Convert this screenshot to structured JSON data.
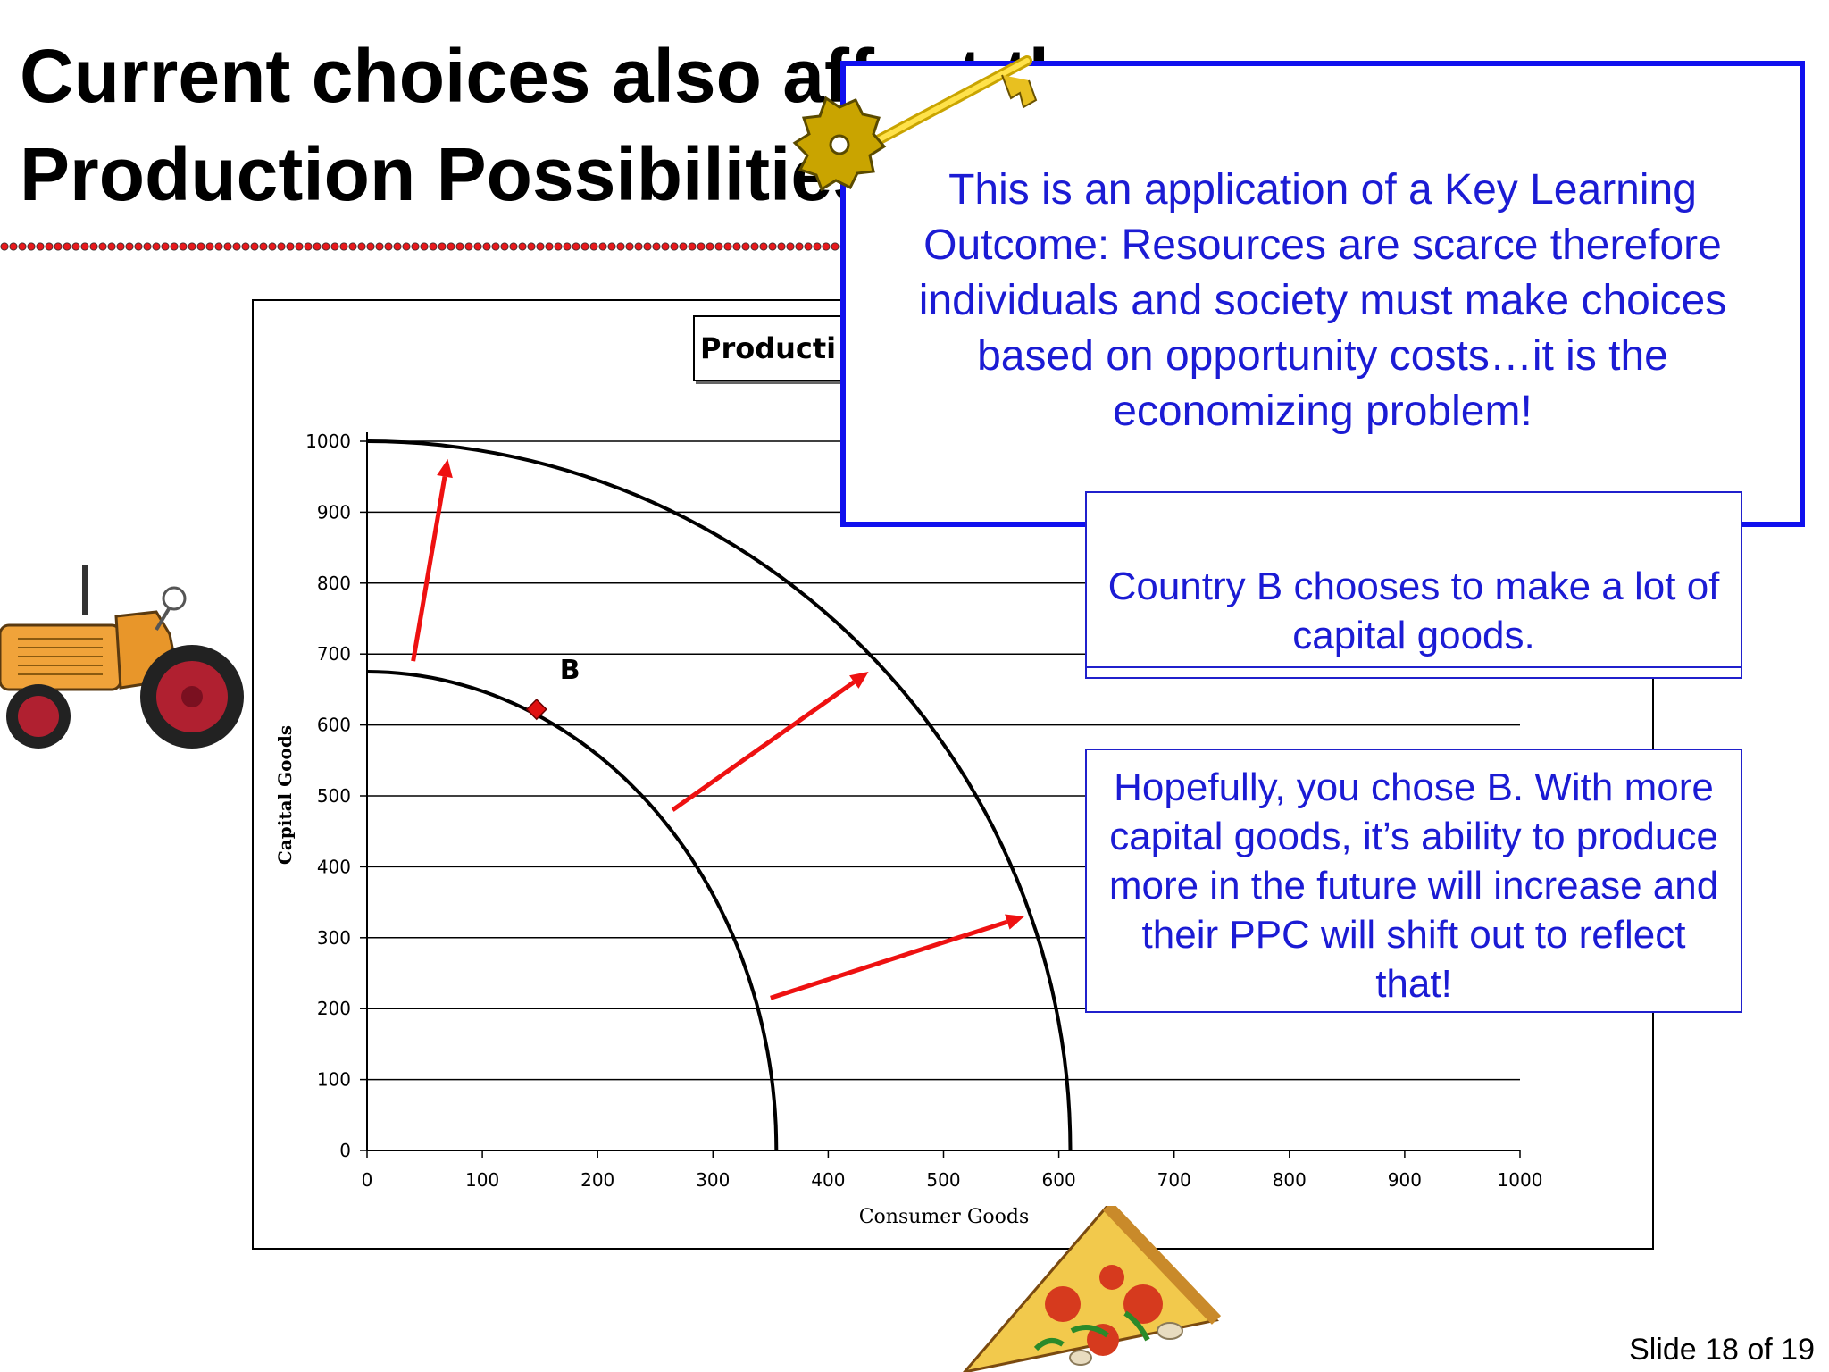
{
  "slide": {
    "title_line1": "Current choices also affect the",
    "title_line2": "Production Possibilities",
    "slide_number": "Slide 18 of 19",
    "accent_color": "#1b1bd4"
  },
  "callouts": {
    "key_learning": "This is an application of a Key Learning Outcome:  Resources are scarce therefore individuals and society must make choices based on opportunity costs…it is the economizing problem!",
    "country_b": "Country B chooses to make a lot of capital goods.",
    "hopefully": "Hopefully, you chose B.  With more capital goods, it’s ability to produce more in the future will increase and their PPC will shift out to reflect that!"
  },
  "icons": {
    "key": "golden-key-icon",
    "tractor": "tractor-icon",
    "pizza": "pizza-slice-icon"
  },
  "chart_data": {
    "type": "line",
    "title": "Producti",
    "xlabel": "Consumer Goods",
    "ylabel": "Capital Goods",
    "xlim": [
      0,
      1000
    ],
    "ylim": [
      0,
      1000
    ],
    "x_ticks": [
      0,
      100,
      200,
      300,
      400,
      500,
      600,
      700,
      800,
      900,
      1000
    ],
    "y_ticks": [
      0,
      100,
      200,
      300,
      400,
      500,
      600,
      700,
      800,
      900,
      1000
    ],
    "grid": "horizontal",
    "series": [
      {
        "curve": "original_ppc",
        "x_intercept": 355,
        "y_intercept": 675,
        "color": "#000000"
      },
      {
        "curve": "shifted_ppc",
        "x_intercept": 610,
        "y_intercept": 1000,
        "color": "#000000"
      }
    ],
    "point": {
      "label": "B",
      "x": 147,
      "y": 622,
      "color": "#e01010"
    },
    "shift_arrows": [
      {
        "from": [
          40,
          690
        ],
        "to": [
          70,
          975
        ]
      },
      {
        "from": [
          265,
          480
        ],
        "to": [
          435,
          675
        ]
      },
      {
        "from": [
          350,
          215
        ],
        "to": [
          570,
          330
        ]
      }
    ],
    "arrow_color": "#ee1111"
  }
}
